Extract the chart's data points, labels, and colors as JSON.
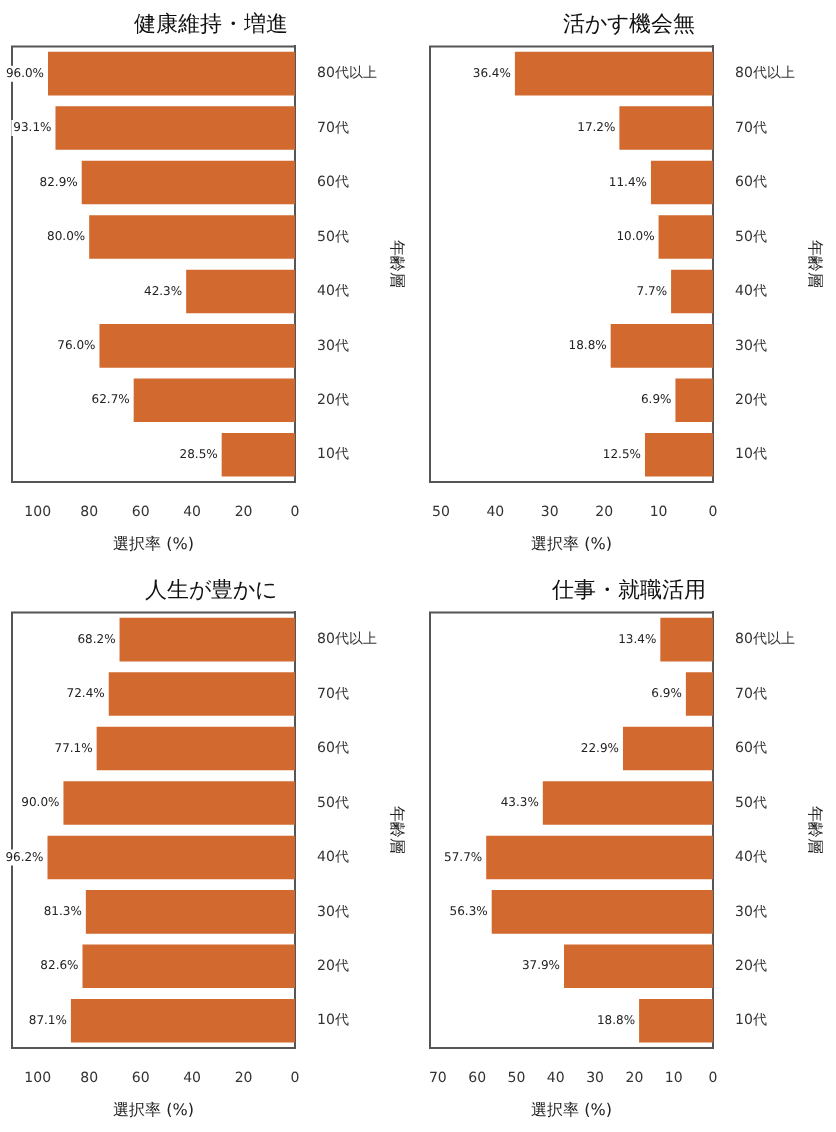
{
  "chart_data": [
    {
      "type": "bar",
      "orientation": "horizontal",
      "title": "健康維持・増進",
      "xlabel": "選択率 (%)",
      "ylabel": "年齢層",
      "categories": [
        "80代以上",
        "70代",
        "60代",
        "50代",
        "40代",
        "30代",
        "20代",
        "10代"
      ],
      "values": [
        96.0,
        93.1,
        82.9,
        80.0,
        42.3,
        76.0,
        62.7,
        28.5
      ],
      "value_labels": [
        "96.0%",
        "93.1%",
        "82.9%",
        "80.0%",
        "42.3%",
        "76.0%",
        "62.7%",
        "28.5%"
      ],
      "color": "#d2692f",
      "xlim": [
        110,
        0
      ],
      "xticks": [
        100,
        80,
        60,
        40,
        20,
        0
      ],
      "grid": false,
      "legend": false
    },
    {
      "type": "bar",
      "orientation": "horizontal",
      "title": "活かす機会無",
      "xlabel": "選択率 (%)",
      "ylabel": "年齢層",
      "categories": [
        "80代以上",
        "70代",
        "60代",
        "50代",
        "40代",
        "30代",
        "20代",
        "10代"
      ],
      "values": [
        36.4,
        17.2,
        11.4,
        10.0,
        7.7,
        18.8,
        6.9,
        12.5
      ],
      "value_labels": [
        "36.4%",
        "17.2%",
        "11.4%",
        "10.0%",
        "7.7%",
        "18.8%",
        "6.9%",
        "12.5%"
      ],
      "color": "#d2692f",
      "xlim": [
        52,
        0
      ],
      "xticks": [
        50,
        40,
        30,
        20,
        10,
        0
      ],
      "grid": false,
      "legend": false
    },
    {
      "type": "bar",
      "orientation": "horizontal",
      "title": "人生が豊かに",
      "xlabel": "選択率 (%)",
      "ylabel": "年齢層",
      "categories": [
        "80代以上",
        "70代",
        "60代",
        "50代",
        "40代",
        "30代",
        "20代",
        "10代"
      ],
      "values": [
        68.2,
        72.4,
        77.1,
        90.0,
        96.2,
        81.3,
        82.6,
        87.1
      ],
      "value_labels": [
        "68.2%",
        "72.4%",
        "77.1%",
        "90.0%",
        "96.2%",
        "81.3%",
        "82.6%",
        "87.1%"
      ],
      "color": "#d2692f",
      "xlim": [
        110,
        0
      ],
      "xticks": [
        100,
        80,
        60,
        40,
        20,
        0
      ],
      "grid": false,
      "legend": false
    },
    {
      "type": "bar",
      "orientation": "horizontal",
      "title": "仕事・就職活用",
      "xlabel": "選択率 (%)",
      "ylabel": "年齢層",
      "categories": [
        "80代以上",
        "70代",
        "60代",
        "50代",
        "40代",
        "30代",
        "20代",
        "10代"
      ],
      "values": [
        13.4,
        6.9,
        22.9,
        43.3,
        57.7,
        56.3,
        37.9,
        18.8
      ],
      "value_labels": [
        "13.4%",
        "6.9%",
        "22.9%",
        "43.3%",
        "57.7%",
        "56.3%",
        "37.9%",
        "18.8%"
      ],
      "color": "#d2692f",
      "xlim": [
        72,
        0
      ],
      "xticks": [
        70,
        60,
        50,
        40,
        30,
        20,
        10,
        0
      ],
      "grid": false,
      "legend": false
    }
  ]
}
